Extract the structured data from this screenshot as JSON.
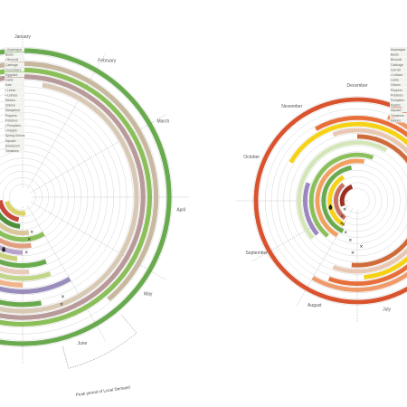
{
  "left_chart": {
    "months": [
      "January",
      "February",
      "March",
      "April",
      "May",
      "June"
    ],
    "annotation": "Peak period of Local Demand",
    "legend": [
      "• Asparagus",
      "Beets",
      "• Broccoli",
      "Cabbage",
      "Cucumbers",
      "Eggplant",
      "Garlic",
      "Kale",
      "• Leeks",
      "• Lettuce",
      "Melons",
      "Onions",
      "Mangetout",
      "Peppers",
      "Potatoes",
      "• Pumpkins",
      "• Radish",
      "Spring Onions",
      "Squash",
      "Sweetcorn",
      "Tomatoes"
    ],
    "rings": [
      {
        "color": "#6aaa4f",
        "start": 0,
        "end": 360
      },
      {
        "color": "#ffffff",
        "start": 0,
        "end": 0
      },
      {
        "color": "#c8b8a0",
        "start": 300,
        "end": 140
      },
      {
        "color": "#8bbf5a",
        "start": 320,
        "end": 200
      },
      {
        "color": "#b99a9a",
        "start": 335,
        "end": 210
      },
      {
        "color": "#d8c9b5",
        "start": 10,
        "end": 230
      },
      {
        "color": "#6aaa4f",
        "start": 170,
        "end": 260
      },
      {
        "color": "#e3e07a",
        "start": 200,
        "end": 250
      },
      {
        "color": "#9b8dbb",
        "start": 150,
        "end": 240
      },
      {
        "color": "#f1b48a",
        "start": 180,
        "end": 260
      },
      {
        "color": "#c2d68a",
        "start": 160,
        "end": 240
      },
      {
        "color": "#e8cbb8",
        "start": 175,
        "end": 255
      },
      {
        "color": "#6aaa4f",
        "start": 160,
        "end": 260
      },
      {
        "color": "#c9d27a",
        "start": 185,
        "end": 250
      },
      {
        "color": "#b6a5c8",
        "start": 180,
        "end": 265
      },
      {
        "color": "#e0a080",
        "start": 170,
        "end": 250
      },
      {
        "color": "#8bbf5a",
        "start": 150,
        "end": 250
      },
      {
        "color": "#d9c89a",
        "start": 170,
        "end": 260
      },
      {
        "color": "#4f8f3a",
        "start": 185,
        "end": 262
      },
      {
        "color": "#c5483a",
        "start": 190,
        "end": 262
      },
      {
        "color": "#d9d36a",
        "start": 170,
        "end": 255
      }
    ],
    "markers": [
      "×",
      "×",
      "×",
      "×",
      "×"
    ],
    "drop_icon": "water-drop-icon"
  },
  "right_chart": {
    "months": [
      "December",
      "November",
      "October",
      "September",
      "August",
      "July"
    ],
    "legend": [
      "Asparagus",
      "Beets",
      "Broccoli",
      "Cabbage",
      "Carrots",
      "• Lettuce",
      "Leeks",
      "Onions",
      "Peppers",
      "Potatoes",
      "Pumpkins",
      "Radish",
      "Squash",
      "Tomatoes",
      "Melons"
    ],
    "rings": [
      {
        "color": "#d9542e",
        "start": 0,
        "end": 360
      },
      {
        "color": "#ffffff",
        "start": 0,
        "end": 0
      },
      {
        "color": "#ef9a6a",
        "start": 20,
        "end": 210
      },
      {
        "color": "#e86f3a",
        "start": 330,
        "end": 200
      },
      {
        "color": "#f5d215",
        "start": 300,
        "end": 175
      },
      {
        "color": "#e9c8b3",
        "start": 340,
        "end": 200
      },
      {
        "color": "#cf6a3a",
        "start": 0,
        "end": 185
      },
      {
        "color": "#d4e6b8",
        "start": 230,
        "end": 30
      },
      {
        "color": "#9b86c0",
        "start": 230,
        "end": 290
      },
      {
        "color": "#8bbf5a",
        "start": 220,
        "end": 20
      },
      {
        "color": "#f1a060",
        "start": 210,
        "end": 10
      },
      {
        "color": "#6aaa4f",
        "start": 205,
        "end": 350
      },
      {
        "color": "#f5d215",
        "start": 210,
        "end": 330
      },
      {
        "color": "#c87060",
        "start": 215,
        "end": 320
      },
      {
        "color": "#9a2f22",
        "start": 250,
        "end": 340
      }
    ],
    "markers": [
      "×",
      "×",
      "×",
      "×",
      "×",
      "×",
      "×",
      "×"
    ],
    "drop_icon": "water-drop-icon"
  },
  "colors": {
    "grid": "#bbbbbb",
    "text": "#555555",
    "legend_bg": "#f2f2ee"
  }
}
